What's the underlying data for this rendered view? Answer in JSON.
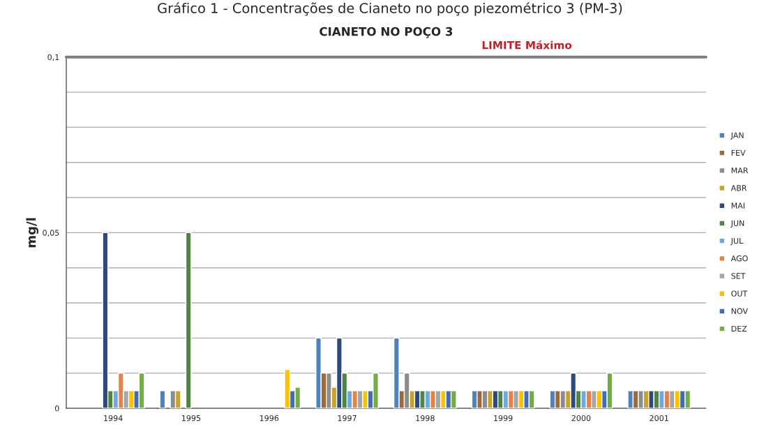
{
  "chart_data": {
    "type": "bar",
    "title": "Gráfico 1 - Concentrações de Cianeto no poço piezométrico 3 (PM-3)",
    "subtitle": "CIANETO NO POÇO 3",
    "ylabel": "mg/l",
    "categories": [
      "1994",
      "1995",
      "1996",
      "1997",
      "1998",
      "1999",
      "2000",
      "2001"
    ],
    "series": [
      {
        "name": "JAN",
        "color": "#4f81bd",
        "values": [
          null,
          0.005,
          null,
          0.02,
          0.02,
          0.005,
          0.005,
          0.005
        ]
      },
      {
        "name": "FEV",
        "color": "#a0673a",
        "values": [
          null,
          null,
          null,
          0.01,
          0.005,
          0.005,
          0.005,
          0.005
        ]
      },
      {
        "name": "MAR",
        "color": "#8c8c8c",
        "values": [
          null,
          0.005,
          null,
          0.01,
          0.01,
          0.005,
          0.005,
          0.005
        ]
      },
      {
        "name": "ABR",
        "color": "#c9a227",
        "values": [
          null,
          0.005,
          null,
          0.006,
          0.005,
          0.005,
          0.005,
          0.005
        ]
      },
      {
        "name": "MAI",
        "color": "#2e4a7d",
        "values": [
          0.05,
          null,
          null,
          0.02,
          0.005,
          0.005,
          0.01,
          0.005
        ]
      },
      {
        "name": "JUN",
        "color": "#4e8542",
        "values": [
          0.005,
          0.05,
          null,
          0.01,
          0.005,
          0.005,
          0.005,
          0.005
        ]
      },
      {
        "name": "JUL",
        "color": "#6fa8dc",
        "values": [
          0.005,
          null,
          null,
          0.005,
          0.005,
          0.005,
          0.005,
          0.005
        ]
      },
      {
        "name": "AGO",
        "color": "#e4824a",
        "values": [
          0.01,
          null,
          null,
          0.005,
          0.005,
          0.005,
          0.005,
          0.005
        ]
      },
      {
        "name": "SET",
        "color": "#a5a5a5",
        "values": [
          0.005,
          null,
          null,
          0.005,
          0.005,
          0.005,
          0.005,
          0.005
        ]
      },
      {
        "name": "OUT",
        "color": "#ffc000",
        "values": [
          0.005,
          null,
          0.011,
          0.005,
          0.005,
          0.005,
          0.005,
          0.005
        ]
      },
      {
        "name": "NOV",
        "color": "#3e6fb0",
        "values": [
          0.005,
          null,
          0.005,
          0.005,
          0.005,
          0.005,
          0.005,
          0.005
        ]
      },
      {
        "name": "DEZ",
        "color": "#70ad47",
        "values": [
          0.01,
          null,
          0.006,
          0.01,
          0.005,
          0.005,
          0.01,
          0.005
        ]
      }
    ],
    "ylim": [
      0,
      0.1
    ],
    "yticks": [
      0,
      {
        "value": 0.01,
        "label": null
      },
      {
        "value": 0.02,
        "label": null
      },
      {
        "value": 0.03,
        "label": null
      },
      {
        "value": 0.04,
        "label": null
      },
      {
        "value": 0.05,
        "label": "0,05"
      },
      {
        "value": 0.06,
        "label": null
      },
      {
        "value": 0.07,
        "label": null
      },
      {
        "value": 0.08,
        "label": null
      },
      {
        "value": 0.09,
        "label": null
      },
      {
        "value": 0.1,
        "label": "0,1"
      }
    ],
    "ref_lines": [
      {
        "axis": "y",
        "value": 0.1,
        "label": "LIMITE Máximo",
        "color": "#7f7f7f"
      }
    ],
    "grid": "y",
    "legend": "right"
  }
}
